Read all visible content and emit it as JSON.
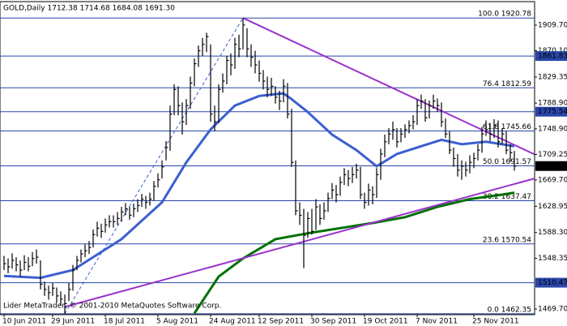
{
  "chart_data": {
    "type": "ohlc",
    "title": "GOLD,Daily  1712.38 1714.68 1684.08 1691.30",
    "footer": "Lider MetaTrader, © 2001-2010 MetaQuotes Software Corp.",
    "color": "#000000",
    "xlim": [
      -1,
      131
    ],
    "ylim": [
      1460.9,
      1946.2
    ],
    "yticks": [
      {
        "value": 1909.7,
        "label": "1909.70"
      },
      {
        "value": 1870.1,
        "label": "1870.10"
      },
      {
        "value": 1829.35,
        "label": "1829.35"
      },
      {
        "value": 1788.9,
        "label": "1788.90"
      },
      {
        "value": 1748.9,
        "label": "1748.90"
      },
      {
        "value": 1709.25,
        "label": "1709.25"
      },
      {
        "value": 1669.7,
        "label": "1669.70"
      },
      {
        "value": 1628.95,
        "label": "1628.95"
      },
      {
        "value": 1588.3,
        "label": "1588.30"
      },
      {
        "value": 1548.35,
        "label": "1548.35"
      },
      {
        "value": 1469.7,
        "label": "1469.70"
      }
    ],
    "categories": [
      "10 Jun 2011",
      null,
      null,
      null,
      null,
      null,
      null,
      null,
      null,
      null,
      null,
      null,
      "29 Jun 2011",
      null,
      null,
      null,
      null,
      null,
      null,
      null,
      null,
      null,
      null,
      null,
      null,
      "18 Jul 2011",
      null,
      null,
      null,
      null,
      null,
      null,
      null,
      null,
      null,
      null,
      null,
      null,
      "5 Aug 2011",
      null,
      null,
      null,
      null,
      null,
      null,
      null,
      null,
      null,
      null,
      null,
      null,
      "24 Aug 2011",
      null,
      null,
      null,
      null,
      null,
      null,
      null,
      null,
      null,
      null,
      null,
      "12 Sep 2011",
      null,
      null,
      null,
      null,
      null,
      null,
      null,
      null,
      null,
      null,
      null,
      null,
      "30 Sep 2011",
      null,
      null,
      null,
      null,
      null,
      null,
      null,
      null,
      null,
      null,
      null,
      null,
      "19 Oct 2011",
      null,
      null,
      null,
      null,
      null,
      null,
      null,
      null,
      null,
      null,
      null,
      null,
      "7 Nov 2011",
      null,
      null,
      null,
      null,
      null,
      null,
      null,
      null,
      null,
      null,
      null,
      null,
      null,
      "25 Nov 2011",
      null,
      null,
      null,
      null,
      null,
      null,
      null,
      null,
      null,
      null
    ],
    "high": [
      1552,
      1548,
      1556,
      1550,
      1545,
      1553,
      1550,
      1558,
      1562,
      1545,
      1512,
      1506,
      1510,
      1503,
      1497,
      1492,
      1510,
      1538,
      1552,
      1562,
      1570,
      1575,
      1593,
      1605,
      1602,
      1610,
      1615,
      1615,
      1620,
      1628,
      1634,
      1628,
      1633,
      1640,
      1648,
      1645,
      1650,
      1668,
      1680,
      1700,
      1730,
      1785,
      1818,
      1815,
      1790,
      1795,
      1830,
      1858,
      1878,
      1890,
      1898,
      1880,
      1785,
      1818,
      1835,
      1862,
      1866,
      1890,
      1895,
      1920.78,
      1905,
      1880,
      1870,
      1855,
      1840,
      1830,
      1828,
      1815,
      1808,
      1826,
      1820,
      1780,
      1700,
      1635,
      1625,
      1620,
      1625,
      1640,
      1632,
      1635,
      1650,
      1665,
      1662,
      1675,
      1688,
      1685,
      1690,
      1695,
      1690,
      1650,
      1664,
      1660,
      1688,
      1718,
      1740,
      1750,
      1760,
      1750,
      1750,
      1756,
      1762,
      1770,
      1795,
      1802,
      1795,
      1793,
      1802,
      1796,
      1790,
      1765,
      1745,
      1720,
      1710,
      1700,
      1698,
      1708,
      1712,
      1725,
      1752,
      1762,
      1758,
      1764,
      1762,
      1750,
      1745,
      1725,
      1714.68
    ],
    "low": [
      1530,
      1525,
      1532,
      1528,
      1520,
      1530,
      1528,
      1536,
      1540,
      1500,
      1490,
      1484,
      1490,
      1480,
      1475,
      1462.35,
      1482,
      1498,
      1530,
      1542,
      1550,
      1555,
      1565,
      1582,
      1580,
      1588,
      1596,
      1596,
      1600,
      1605,
      1615,
      1608,
      1612,
      1620,
      1628,
      1625,
      1630,
      1638,
      1658,
      1672,
      1700,
      1715,
      1770,
      1770,
      1740,
      1755,
      1780,
      1815,
      1845,
      1862,
      1868,
      1760,
      1745,
      1758,
      1805,
      1818,
      1832,
      1842,
      1860,
      1872,
      1860,
      1845,
      1835,
      1822,
      1810,
      1798,
      1800,
      1788,
      1778,
      1790,
      1765,
      1690,
      1615,
      1600,
      1533,
      1580,
      1585,
      1592,
      1600,
      1608,
      1620,
      1640,
      1635,
      1645,
      1662,
      1660,
      1665,
      1672,
      1640,
      1625,
      1630,
      1632,
      1642,
      1670,
      1705,
      1725,
      1732,
      1720,
      1728,
      1735,
      1742,
      1748,
      1755,
      1780,
      1760,
      1765,
      1780,
      1775,
      1752,
      1735,
      1710,
      1690,
      1675,
      1670,
      1675,
      1680,
      1688,
      1700,
      1712,
      1738,
      1730,
      1735,
      1720,
      1725,
      1710,
      1698,
      1684.08
    ],
    "close": [
      1540,
      1535,
      1545,
      1538,
      1530,
      1542,
      1536,
      1548,
      1550,
      1508,
      1500,
      1495,
      1502,
      1490,
      1485,
      1478,
      1500,
      1530,
      1545,
      1555,
      1560,
      1565,
      1585,
      1595,
      1590,
      1600,
      1605,
      1605,
      1610,
      1620,
      1625,
      1615,
      1625,
      1630,
      1640,
      1635,
      1640,
      1660,
      1670,
      1690,
      1720,
      1772,
      1810,
      1785,
      1760,
      1785,
      1820,
      1850,
      1870,
      1880,
      1892,
      1772,
      1760,
      1810,
      1823,
      1855,
      1848,
      1880,
      1873,
      1910,
      1873,
      1860,
      1848,
      1835,
      1823,
      1810,
      1815,
      1798,
      1792,
      1815,
      1772,
      1697,
      1622,
      1615,
      1584,
      1610,
      1590,
      1628,
      1610,
      1622,
      1641,
      1654,
      1647,
      1666,
      1678,
      1672,
      1678,
      1685,
      1647,
      1635,
      1654,
      1647,
      1678,
      1710,
      1729,
      1741,
      1748,
      1729,
      1741,
      1748,
      1754,
      1760,
      1785,
      1792,
      1766,
      1785,
      1792,
      1785,
      1760,
      1741,
      1716,
      1703,
      1685,
      1691,
      1685,
      1697,
      1703,
      1716,
      1741,
      1748,
      1741,
      1754,
      1729,
      1741,
      1716,
      1712,
      1691.3
    ],
    "overlays": [
      {
        "x": [
          0,
          9,
          17,
          29,
          39,
          45,
          51,
          57,
          63,
          69,
          71,
          75,
          81,
          87,
          92,
          97,
          103,
          108,
          113,
          119,
          126
        ],
        "values": [
          1521,
          1518,
          1530,
          1578,
          1635,
          1697,
          1748,
          1785,
          1800,
          1804,
          1795,
          1775,
          1740,
          1716,
          1691,
          1710,
          1722,
          1732,
          1725,
          1729,
          1722
        ],
        "color": "#3b5fd0",
        "width": 3,
        "dash": false
      },
      {
        "x": [
          47,
          53,
          59,
          67,
          75,
          83,
          91,
          99,
          107,
          115,
          123,
          126
        ],
        "values": [
          1463,
          1520,
          1548,
          1578,
          1587,
          1595,
          1603,
          1612,
          1628,
          1640,
          1647,
          1650
        ],
        "color": "#007000",
        "width": 3,
        "dash": false
      },
      {
        "x": [
          59,
          131
        ],
        "values": [
          1920.78,
          1709.3
        ],
        "color": "#9932cc",
        "width": 2,
        "dash": false
      },
      {
        "x": [
          15,
          131
        ],
        "values": [
          1473,
          1672
        ],
        "color": "#9932cc",
        "width": 2,
        "dash": false
      },
      {
        "x": [
          15,
          59
        ],
        "values": [
          1462.35,
          1920.78
        ],
        "color": "#3b5fd0",
        "width": 1,
        "dash": true
      }
    ],
    "levels": [
      {
        "value": 1920.78,
        "label": "100.0 1920.78"
      },
      {
        "value": 1812.59,
        "label": "76.4 1812.59"
      },
      {
        "value": 1745.66,
        "label": "61.8 1745.66"
      },
      {
        "value": 1691.57,
        "label": "50.0 1691.57"
      },
      {
        "value": 1637.47,
        "label": "38.2 1637.47"
      },
      {
        "value": 1570.54,
        "label": "23.6 1570.54"
      },
      {
        "value": 1462.35,
        "label": "0.0 1462.35"
      }
    ],
    "level_color": "#2846a8",
    "markers": [
      {
        "value": 1861.83,
        "color": "#2846a8"
      },
      {
        "value": 1775.54,
        "color": "#2846a8"
      },
      {
        "value": 1510.47,
        "color": "#2846a8"
      },
      {
        "value": 1691.3,
        "label": "1691.30",
        "color": "#000000"
      }
    ]
  }
}
